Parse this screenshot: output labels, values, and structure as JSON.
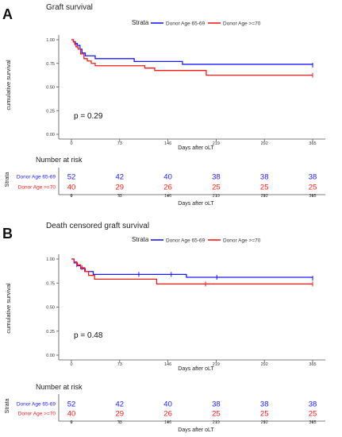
{
  "panels": [
    {
      "letter": "A",
      "title": "Graft survival",
      "strata_title": "Strata",
      "ylabel": "cumulative survival",
      "xlabel": "Days after oLT",
      "p_value": "p = 0.29",
      "risk_title": "Number at risk",
      "risk_ylabel": "Strata"
    },
    {
      "letter": "B",
      "title": "Death censored graft survival",
      "strata_title": "Strata",
      "ylabel": "cumulative survival",
      "xlabel": "Days after oLT",
      "p_value": "p = 0.48",
      "risk_title": "Number at risk",
      "risk_ylabel": "Strata"
    }
  ],
  "colors": {
    "group1": "#1a1aff",
    "group2": "#ff1a1a",
    "axis": "#555555",
    "grid": "#e6e6e6"
  },
  "chart_data": [
    {
      "type": "line",
      "title": "Graft survival",
      "xlabel": "Days after oLT",
      "ylabel": "cumulative survival",
      "xlim": [
        0,
        365
      ],
      "ylim": [
        0,
        1
      ],
      "x_ticks": [
        "0",
        "73",
        "146",
        "219",
        "292",
        "365"
      ],
      "y_ticks": [
        "0.00",
        "0.25",
        "0.50",
        "0.75",
        "1.00"
      ],
      "series": [
        {
          "name": "Donor Age 65-69",
          "color": "#1a1aff",
          "x": [
            0,
            3,
            6,
            9,
            13,
            16,
            21,
            36,
            95,
            168,
            365
          ],
          "y": [
            1.0,
            0.98,
            0.96,
            0.94,
            0.9,
            0.86,
            0.83,
            0.8,
            0.77,
            0.74,
            0.73
          ]
        },
        {
          "name": "Donor Age >=70",
          "color": "#ff1a1a",
          "x": [
            0,
            3,
            5,
            7,
            10,
            14,
            19,
            24,
            30,
            36,
            111,
            126,
            204,
            365
          ],
          "y": [
            1.0,
            0.975,
            0.95,
            0.925,
            0.9,
            0.85,
            0.8,
            0.775,
            0.75,
            0.725,
            0.7,
            0.675,
            0.625,
            0.625
          ]
        }
      ],
      "risk_table": {
        "x": [
          0,
          73,
          146,
          219,
          292,
          365
        ],
        "rows": [
          {
            "name": "Donor Age 65-69",
            "values": [
              "52",
              "42",
              "40",
              "38",
              "38",
              "38"
            ]
          },
          {
            "name": "Donor Age >=70",
            "values": [
              "40",
              "29",
              "26",
              "25",
              "25",
              "25"
            ]
          }
        ]
      }
    },
    {
      "type": "line",
      "title": "Death censored graft survival",
      "xlabel": "Days after oLT",
      "ylabel": "cumulative survival",
      "xlim": [
        0,
        365
      ],
      "ylim": [
        0,
        1
      ],
      "x_ticks": [
        "0",
        "73",
        "146",
        "219",
        "292",
        "365"
      ],
      "y_ticks": [
        "0.00",
        "0.25",
        "0.50",
        "0.75",
        "1.00"
      ],
      "series": [
        {
          "name": "Donor Age 65-69",
          "color": "#1a1aff",
          "x": [
            0,
            4,
            9,
            14,
            21,
            33,
            174,
            365
          ],
          "y": [
            1.0,
            0.96,
            0.93,
            0.9,
            0.87,
            0.84,
            0.81,
            0.8
          ],
          "censored_x": [
            102,
            151,
            220,
            365
          ]
        },
        {
          "name": "Donor Age >=70",
          "color": "#ff1a1a",
          "x": [
            0,
            4,
            8,
            14,
            20,
            26,
            35,
            129,
            365
          ],
          "y": [
            1.0,
            0.97,
            0.94,
            0.91,
            0.87,
            0.83,
            0.79,
            0.74,
            0.74
          ],
          "censored_x": [
            8,
            16,
            203,
            365
          ]
        }
      ],
      "risk_table": {
        "x": [
          0,
          73,
          146,
          219,
          292,
          365
        ],
        "rows": [
          {
            "name": "Donor Age 65-69",
            "values": [
              "52",
              "42",
              "40",
              "38",
              "38",
              "38"
            ]
          },
          {
            "name": "Donor Age >=70",
            "values": [
              "40",
              "29",
              "26",
              "25",
              "25",
              "25"
            ]
          }
        ]
      }
    }
  ]
}
